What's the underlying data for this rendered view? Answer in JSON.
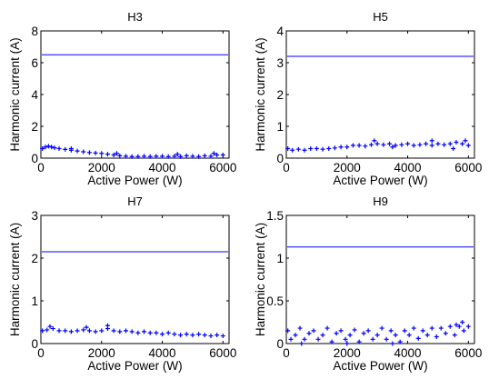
{
  "chart_data": [
    {
      "type": "scatter",
      "title": "H3",
      "xlabel": "Active Power (W)",
      "ylabel": "Harmonic current (A)",
      "xlim": [
        0,
        6200
      ],
      "ylim": [
        0,
        8
      ],
      "xticks": [
        "0",
        "2000",
        "4000",
        "6000"
      ],
      "yticks": [
        "0",
        "2",
        "4",
        "6",
        "8"
      ],
      "reference_line": 6.5,
      "color": "#0000ff",
      "grid": false,
      "series": [
        {
          "values": [
            [
              50,
              0.6
            ],
            [
              150,
              0.7
            ],
            [
              250,
              0.75
            ],
            [
              350,
              0.7
            ],
            [
              450,
              0.65
            ],
            [
              600,
              0.6
            ],
            [
              800,
              0.55
            ],
            [
              1000,
              0.5
            ],
            [
              1200,
              0.45
            ],
            [
              1400,
              0.4
            ],
            [
              1600,
              0.35
            ],
            [
              1800,
              0.32
            ],
            [
              2000,
              0.3
            ],
            [
              2200,
              0.25
            ],
            [
              2400,
              0.2
            ],
            [
              2600,
              0.15
            ],
            [
              2800,
              0.12
            ],
            [
              3000,
              0.1
            ],
            [
              3200,
              0.1
            ],
            [
              3400,
              0.12
            ],
            [
              3600,
              0.1
            ],
            [
              3800,
              0.12
            ],
            [
              4000,
              0.12
            ],
            [
              4200,
              0.1
            ],
            [
              4400,
              0.12
            ],
            [
              4600,
              0.1
            ],
            [
              4800,
              0.15
            ],
            [
              5000,
              0.12
            ],
            [
              5200,
              0.1
            ],
            [
              5400,
              0.15
            ],
            [
              5600,
              0.12
            ],
            [
              5800,
              0.2
            ],
            [
              6000,
              0.2
            ],
            [
              1000,
              0.6
            ],
            [
              2500,
              0.3
            ],
            [
              4500,
              0.25
            ],
            [
              5700,
              0.3
            ]
          ]
        }
      ]
    },
    {
      "type": "scatter",
      "title": "H5",
      "xlabel": "Active Power (W)",
      "ylabel": "Harmonic current (A)",
      "xlim": [
        0,
        6200
      ],
      "ylim": [
        0,
        4
      ],
      "xticks": [
        "0",
        "2000",
        "4000",
        "6000"
      ],
      "yticks": [
        "0",
        "1",
        "2",
        "3",
        "4"
      ],
      "reference_line": 3.2,
      "color": "#0000ff",
      "grid": false,
      "series": [
        {
          "values": [
            [
              50,
              0.3
            ],
            [
              200,
              0.25
            ],
            [
              400,
              0.28
            ],
            [
              600,
              0.25
            ],
            [
              800,
              0.3
            ],
            [
              1000,
              0.3
            ],
            [
              1200,
              0.28
            ],
            [
              1400,
              0.3
            ],
            [
              1600,
              0.32
            ],
            [
              1800,
              0.35
            ],
            [
              2000,
              0.35
            ],
            [
              2200,
              0.4
            ],
            [
              2400,
              0.4
            ],
            [
              2600,
              0.38
            ],
            [
              2800,
              0.42
            ],
            [
              3000,
              0.45
            ],
            [
              3200,
              0.42
            ],
            [
              3400,
              0.45
            ],
            [
              3600,
              0.4
            ],
            [
              3800,
              0.42
            ],
            [
              4000,
              0.45
            ],
            [
              4200,
              0.4
            ],
            [
              4400,
              0.42
            ],
            [
              4600,
              0.45
            ],
            [
              4800,
              0.4
            ],
            [
              5000,
              0.45
            ],
            [
              5200,
              0.42
            ],
            [
              5400,
              0.45
            ],
            [
              5600,
              0.5
            ],
            [
              5800,
              0.45
            ],
            [
              6000,
              0.4
            ],
            [
              2900,
              0.55
            ],
            [
              4800,
              0.55
            ],
            [
              5900,
              0.55
            ],
            [
              5500,
              0.3
            ],
            [
              3500,
              0.35
            ]
          ]
        }
      ]
    },
    {
      "type": "scatter",
      "title": "H7",
      "xlabel": "Active Power (W)",
      "ylabel": "Harmonic current (A)",
      "xlim": [
        0,
        6200
      ],
      "ylim": [
        0,
        3
      ],
      "xticks": [
        "0",
        "2000",
        "4000",
        "6000"
      ],
      "yticks": [
        "0",
        "1",
        "2",
        "3"
      ],
      "reference_line": 2.15,
      "color": "#0000ff",
      "grid": false,
      "series": [
        {
          "values": [
            [
              50,
              0.3
            ],
            [
              200,
              0.32
            ],
            [
              400,
              0.35
            ],
            [
              600,
              0.3
            ],
            [
              800,
              0.3
            ],
            [
              1000,
              0.28
            ],
            [
              1200,
              0.3
            ],
            [
              1400,
              0.32
            ],
            [
              1600,
              0.3
            ],
            [
              1800,
              0.28
            ],
            [
              2000,
              0.3
            ],
            [
              2200,
              0.35
            ],
            [
              2400,
              0.3
            ],
            [
              2600,
              0.28
            ],
            [
              2800,
              0.3
            ],
            [
              3000,
              0.28
            ],
            [
              3200,
              0.25
            ],
            [
              3400,
              0.28
            ],
            [
              3600,
              0.25
            ],
            [
              3800,
              0.25
            ],
            [
              4000,
              0.22
            ],
            [
              4200,
              0.25
            ],
            [
              4400,
              0.22
            ],
            [
              4600,
              0.2
            ],
            [
              4800,
              0.22
            ],
            [
              5000,
              0.2
            ],
            [
              5200,
              0.22
            ],
            [
              5400,
              0.2
            ],
            [
              5600,
              0.18
            ],
            [
              5800,
              0.2
            ],
            [
              6000,
              0.18
            ],
            [
              2200,
              0.42
            ],
            [
              1500,
              0.38
            ],
            [
              300,
              0.4
            ]
          ]
        }
      ]
    },
    {
      "type": "scatter",
      "title": "H9",
      "xlabel": "Active Power (W)",
      "ylabel": "Harmonic current (A)",
      "xlim": [
        0,
        6200
      ],
      "ylim": [
        0,
        1.5
      ],
      "xticks": [
        "0",
        "2000",
        "4000",
        "6000"
      ],
      "yticks": [
        "0",
        "0.5",
        "1",
        "1.5"
      ],
      "reference_line": 1.13,
      "color": "#0000ff",
      "grid": false,
      "series": [
        {
          "values": [
            [
              50,
              0.15
            ],
            [
              150,
              0.05
            ],
            [
              300,
              0.1
            ],
            [
              450,
              0.18
            ],
            [
              600,
              0.05
            ],
            [
              750,
              0.12
            ],
            [
              900,
              0.15
            ],
            [
              1050,
              0.05
            ],
            [
              1200,
              0.1
            ],
            [
              1350,
              0.18
            ],
            [
              1500,
              0.02
            ],
            [
              1650,
              0.12
            ],
            [
              1800,
              0.15
            ],
            [
              1950,
              0.05
            ],
            [
              2100,
              0.1
            ],
            [
              2250,
              0.16
            ],
            [
              2400,
              0.02
            ],
            [
              2550,
              0.12
            ],
            [
              2700,
              0.15
            ],
            [
              2850,
              0.05
            ],
            [
              3000,
              0.1
            ],
            [
              3150,
              0.18
            ],
            [
              3300,
              0.05
            ],
            [
              3450,
              0.15
            ],
            [
              3600,
              0.1
            ],
            [
              3750,
              0.02
            ],
            [
              3900,
              0.15
            ],
            [
              4050,
              0.1
            ],
            [
              4200,
              0.18
            ],
            [
              4350,
              0.06
            ],
            [
              4500,
              0.15
            ],
            [
              4650,
              0.1
            ],
            [
              4800,
              0.18
            ],
            [
              4950,
              0.08
            ],
            [
              5100,
              0.18
            ],
            [
              5250,
              0.12
            ],
            [
              5400,
              0.2
            ],
            [
              5550,
              0.1
            ],
            [
              5700,
              0.2
            ],
            [
              5850,
              0.15
            ],
            [
              6000,
              0.2
            ],
            [
              500,
              0.0
            ],
            [
              2000,
              0.0
            ],
            [
              3500,
              0.0
            ],
            [
              5800,
              0.25
            ],
            [
              5600,
              0.22
            ]
          ]
        }
      ]
    }
  ]
}
